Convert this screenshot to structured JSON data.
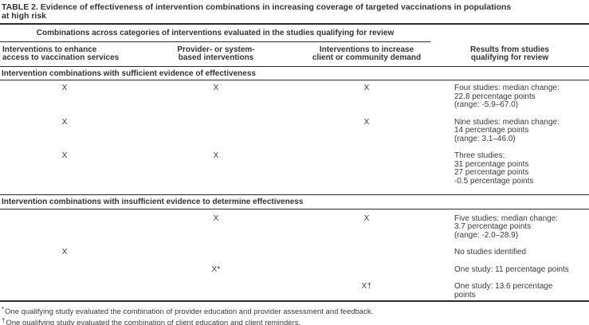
{
  "colors": {
    "text": "#3a3a3a",
    "rule": "#2b2b2b",
    "background": "#ffffff"
  },
  "title_lines": [
    "TABLE 2. Evidence of effectiveness of intervention combinations in increasing coverage of targeted vaccinations in populations",
    "at high risk"
  ],
  "table": {
    "spanner": "Combinations across categories of interventions evaluated in the studies qualifying for review",
    "columns": [
      [
        "Interventions to enhance",
        "access to vaccination services"
      ],
      [
        "Provider- or system-",
        "based interventions"
      ],
      [
        "Interventions to increase",
        "client or community demand"
      ],
      [
        "Results from studies",
        "qualifying for review"
      ]
    ],
    "sections": [
      {
        "header": "Intervention combinations with sufficient evidence of effectiveness",
        "rows": [
          {
            "marks": [
              "X",
              "X",
              "X"
            ],
            "results": [
              "Four studies: median change:",
              "22.8 percentage points",
              "(range: -5.9–67.0)"
            ]
          },
          {
            "marks": [
              "X",
              "",
              "X"
            ],
            "results": [
              "Nine studies: median change:",
              "14 percentage points",
              "(range: 3.1–46.0)"
            ]
          },
          {
            "marks": [
              "X",
              "X",
              ""
            ],
            "results": [
              "Three studies:",
              "31 percentage points",
              "27 percentage points",
              "-0.5 percentage points"
            ]
          }
        ]
      },
      {
        "header": "Intervention combinations with insufficient evidence to determine effectiveness",
        "rows": [
          {
            "marks": [
              "",
              "X",
              "X"
            ],
            "results": [
              "Five studies: median change:",
              "3.7 percentage points",
              "(range: -2.0–28.9)"
            ]
          },
          {
            "marks": [
              "X",
              "",
              ""
            ],
            "results": [
              "No studies identified"
            ]
          },
          {
            "marks": [
              "",
              "X*",
              ""
            ],
            "results": [
              "One study: 11 percentage points"
            ]
          },
          {
            "marks": [
              "",
              "",
              "X†"
            ],
            "results": [
              "One study: 13.6 percentage",
              "points"
            ]
          }
        ]
      }
    ]
  },
  "footnotes": [
    {
      "marker": "*",
      "text": "One qualifying study evaluated the combination of provider education and provider assessment and feedback."
    },
    {
      "marker": "†",
      "text": "One qualifying study evaluated the combination of client education and client reminders."
    }
  ]
}
